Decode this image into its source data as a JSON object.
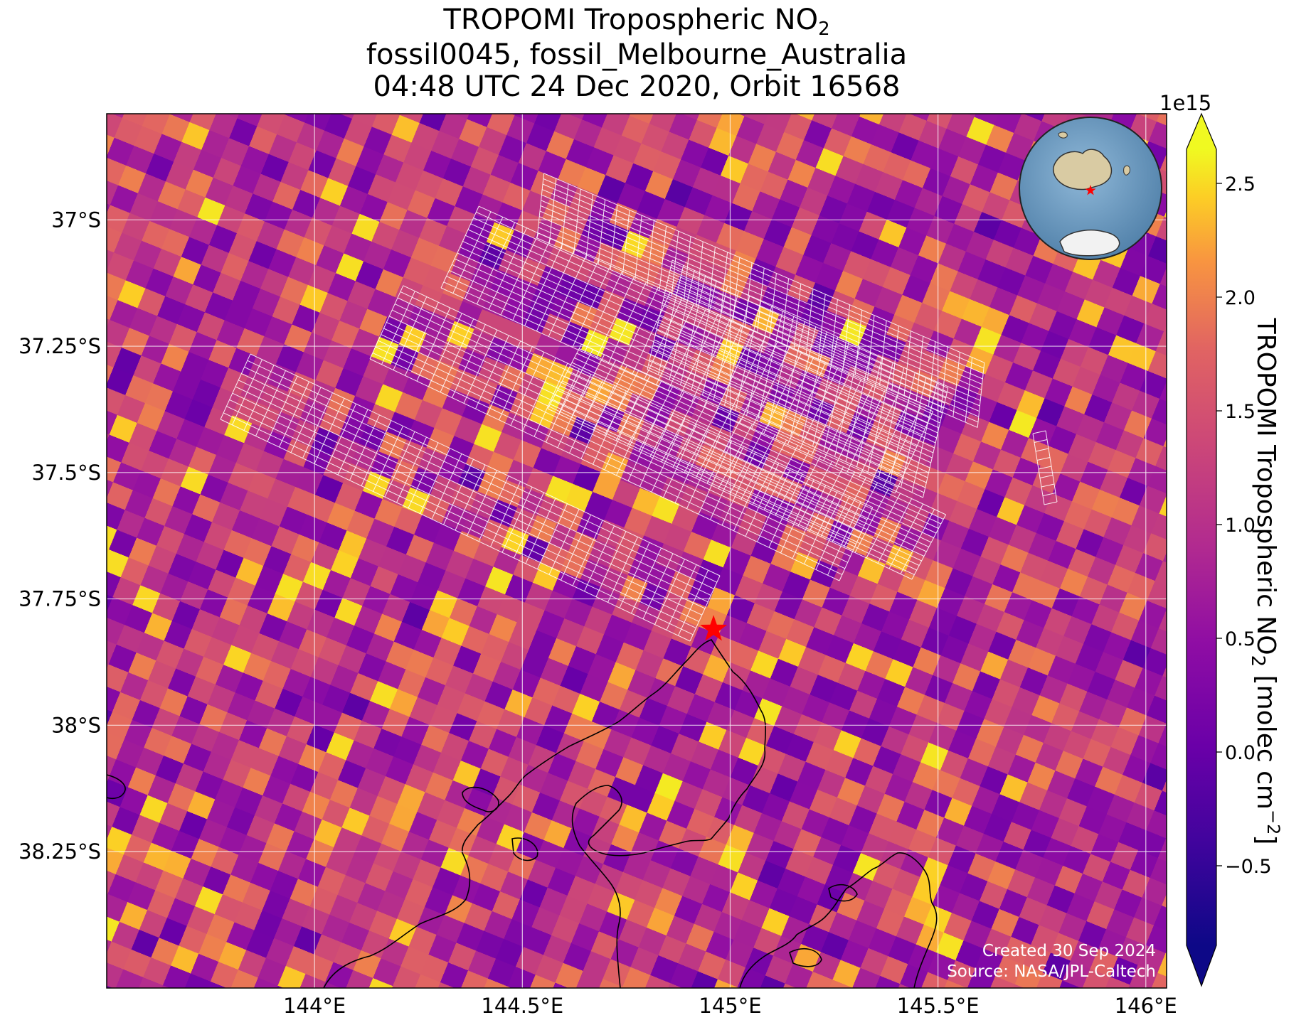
{
  "title": {
    "line1_main": "TROPOMI Tropospheric NO",
    "line1_sub": "2",
    "line2": "fossil0045, fossil_Melbourne_Australia",
    "line3": "04:48 UTC 24 Dec 2020, Orbit 16568"
  },
  "map": {
    "lon_range": [
      143.5,
      146.05
    ],
    "lat_range": [
      -38.52,
      -36.79
    ],
    "lon_ticks": [
      144.0,
      144.5,
      145.0,
      145.5,
      146.0
    ],
    "lon_tick_labels": [
      "144°E",
      "144.5°E",
      "145°E",
      "145.5°E",
      "146°E"
    ],
    "lat_ticks": [
      -37.0,
      -37.25,
      -37.5,
      -37.75,
      -38.0,
      -38.25
    ],
    "lat_tick_labels": [
      "37°S",
      "37.25°S",
      "37.5°S",
      "37.75°S",
      "38°S",
      "38.25°S"
    ],
    "target_star": {
      "lon": 144.96,
      "lat": -37.81,
      "color": "#ff0000"
    },
    "credit_line1": "Created 30 Sep 2024",
    "credit_line2": "Source: NASA/JPL-Caltech",
    "grid": true,
    "inset_globe": {
      "description_icon": "globe-icon",
      "marker_color": "#ff0000"
    }
  },
  "colorbar": {
    "colormap": "plasma",
    "min": -0.85,
    "max": 2.65,
    "exponent_label": "1e15",
    "ticks": [
      -0.5,
      0.0,
      0.5,
      1.0,
      1.5,
      2.0,
      2.5
    ],
    "tick_labels": [
      "−0.5",
      "0.0",
      "0.5",
      "1.0",
      "1.5",
      "2.0",
      "2.5"
    ],
    "label_main": "TROPOMI Tropospheric NO",
    "label_sub": "2",
    "label_units_a": " [molec cm",
    "label_sup": "−2",
    "label_units_b": "]",
    "extend": "both"
  }
}
